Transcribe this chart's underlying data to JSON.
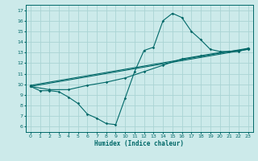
{
  "xlabel": "Humidex (Indice chaleur)",
  "bg_color": "#cceaea",
  "grid_color": "#aad4d4",
  "line_color": "#006868",
  "xlim": [
    -0.5,
    23.5
  ],
  "ylim": [
    5.5,
    17.5
  ],
  "xticks": [
    0,
    1,
    2,
    3,
    4,
    5,
    6,
    7,
    8,
    9,
    10,
    11,
    12,
    13,
    14,
    15,
    16,
    17,
    18,
    19,
    20,
    21,
    22,
    23
  ],
  "yticks": [
    6,
    7,
    8,
    9,
    10,
    11,
    12,
    13,
    14,
    15,
    16,
    17
  ],
  "series_main": {
    "x": [
      0,
      1,
      2,
      3,
      4,
      5,
      6,
      7,
      8,
      9,
      10,
      11,
      12,
      13,
      14,
      15,
      16,
      17,
      18,
      19,
      20,
      21,
      22,
      23
    ],
    "y": [
      9.8,
      9.4,
      9.4,
      9.3,
      8.8,
      8.2,
      7.2,
      6.8,
      6.3,
      6.2,
      8.7,
      11.2,
      13.2,
      13.5,
      16.0,
      16.7,
      16.3,
      15.0,
      14.2,
      13.3,
      13.1,
      13.1,
      13.1,
      13.4
    ]
  },
  "series_smooth": {
    "x": [
      0,
      2,
      4,
      6,
      8,
      10,
      12,
      14,
      16,
      18,
      20,
      22,
      23
    ],
    "y": [
      9.8,
      9.5,
      9.5,
      9.9,
      10.2,
      10.6,
      11.2,
      11.8,
      12.4,
      12.7,
      13.0,
      13.2,
      13.3
    ]
  },
  "series_line1": {
    "x": [
      0,
      23
    ],
    "y": [
      9.8,
      13.3
    ]
  },
  "series_line2": {
    "x": [
      0,
      23
    ],
    "y": [
      9.9,
      13.4
    ]
  }
}
